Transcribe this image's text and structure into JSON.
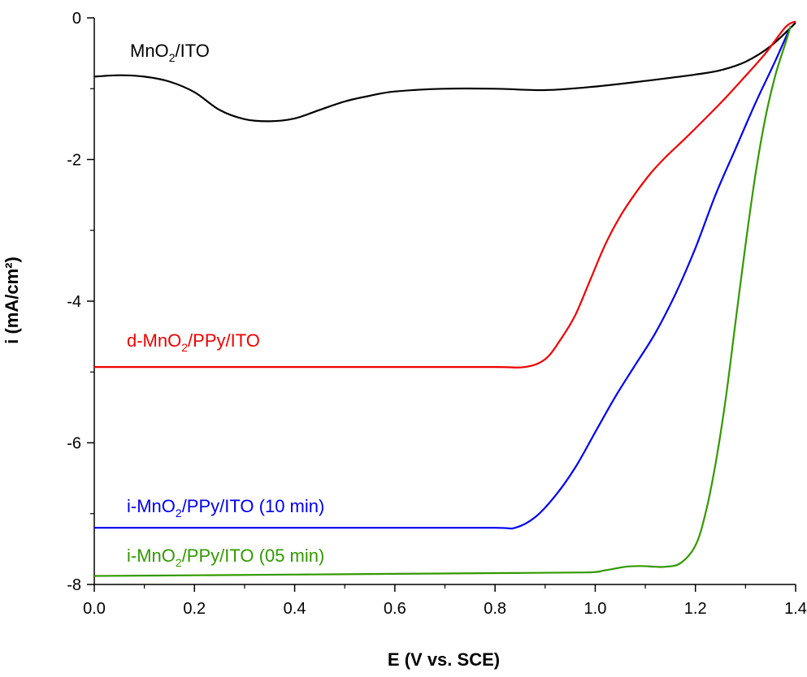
{
  "chart_data": {
    "type": "line",
    "xlabel": "E (V vs. SCE)",
    "ylabel": "i (mA/cm²)",
    "xlim": [
      0.0,
      1.4
    ],
    "ylim": [
      -8,
      0
    ],
    "xticks": [
      "0.0",
      "0.2",
      "0.4",
      "0.6",
      "0.8",
      "1.0",
      "1.2",
      "1.4"
    ],
    "yticks": [
      "0",
      "-2",
      "-4",
      "-6",
      "-8"
    ],
    "grid": false,
    "series": [
      {
        "name": "MnO2/ITO",
        "label_main": "MnO",
        "label_sub": "2",
        "label_rest": "/ITO",
        "color": "#000000",
        "points": [
          [
            0.0,
            -0.83
          ],
          [
            0.05,
            -0.81
          ],
          [
            0.1,
            -0.83
          ],
          [
            0.15,
            -0.9
          ],
          [
            0.2,
            -1.05
          ],
          [
            0.25,
            -1.3
          ],
          [
            0.3,
            -1.43
          ],
          [
            0.35,
            -1.46
          ],
          [
            0.4,
            -1.42
          ],
          [
            0.45,
            -1.3
          ],
          [
            0.5,
            -1.18
          ],
          [
            0.55,
            -1.1
          ],
          [
            0.6,
            -1.04
          ],
          [
            0.7,
            -1.0
          ],
          [
            0.8,
            -1.0
          ],
          [
            0.9,
            -1.02
          ],
          [
            1.0,
            -0.97
          ],
          [
            1.1,
            -0.89
          ],
          [
            1.2,
            -0.8
          ],
          [
            1.25,
            -0.74
          ],
          [
            1.3,
            -0.62
          ],
          [
            1.35,
            -0.4
          ],
          [
            1.4,
            -0.07
          ]
        ]
      },
      {
        "name": "d-MnO2/PPy/ITO",
        "label_main": "d-MnO",
        "label_sub": "2",
        "label_rest": "/PPy/ITO",
        "color": "#ee0000",
        "points": [
          [
            0.0,
            -4.93
          ],
          [
            0.2,
            -4.93
          ],
          [
            0.4,
            -4.93
          ],
          [
            0.6,
            -4.93
          ],
          [
            0.8,
            -4.93
          ],
          [
            0.86,
            -4.93
          ],
          [
            0.9,
            -4.82
          ],
          [
            0.93,
            -4.55
          ],
          [
            0.96,
            -4.2
          ],
          [
            0.99,
            -3.7
          ],
          [
            1.02,
            -3.2
          ],
          [
            1.05,
            -2.8
          ],
          [
            1.08,
            -2.48
          ],
          [
            1.11,
            -2.2
          ],
          [
            1.14,
            -1.97
          ],
          [
            1.18,
            -1.7
          ],
          [
            1.22,
            -1.42
          ],
          [
            1.26,
            -1.13
          ],
          [
            1.3,
            -0.82
          ],
          [
            1.34,
            -0.5
          ],
          [
            1.38,
            -0.13
          ],
          [
            1.4,
            -0.05
          ]
        ]
      },
      {
        "name": "i-MnO2/PPy/ITO (10 min)",
        "label_main": "i-MnO",
        "label_sub": "2",
        "label_rest": "/PPy/ITO (10 min)",
        "color": "#0000ee",
        "points": [
          [
            0.0,
            -7.2
          ],
          [
            0.2,
            -7.2
          ],
          [
            0.4,
            -7.2
          ],
          [
            0.6,
            -7.2
          ],
          [
            0.8,
            -7.2
          ],
          [
            0.84,
            -7.2
          ],
          [
            0.88,
            -7.05
          ],
          [
            0.92,
            -6.75
          ],
          [
            0.96,
            -6.35
          ],
          [
            1.0,
            -5.85
          ],
          [
            1.04,
            -5.35
          ],
          [
            1.08,
            -4.9
          ],
          [
            1.12,
            -4.45
          ],
          [
            1.16,
            -3.9
          ],
          [
            1.2,
            -3.25
          ],
          [
            1.24,
            -2.5
          ],
          [
            1.28,
            -1.85
          ],
          [
            1.32,
            -1.2
          ],
          [
            1.36,
            -0.6
          ],
          [
            1.39,
            -0.12
          ]
        ]
      },
      {
        "name": "i-MnO2/PPy/ITO (05 min)",
        "label_main": "i-MnO",
        "label_sub": "2",
        "label_rest": "/PPy/ITO (05 min)",
        "color": "#339900",
        "points": [
          [
            0.0,
            -7.88
          ],
          [
            0.2,
            -7.87
          ],
          [
            0.4,
            -7.86
          ],
          [
            0.6,
            -7.85
          ],
          [
            0.8,
            -7.84
          ],
          [
            0.98,
            -7.83
          ],
          [
            1.02,
            -7.8
          ],
          [
            1.06,
            -7.75
          ],
          [
            1.09,
            -7.74
          ],
          [
            1.12,
            -7.75
          ],
          [
            1.14,
            -7.75
          ],
          [
            1.17,
            -7.7
          ],
          [
            1.2,
            -7.45
          ],
          [
            1.22,
            -7.0
          ],
          [
            1.24,
            -6.3
          ],
          [
            1.26,
            -5.4
          ],
          [
            1.28,
            -4.3
          ],
          [
            1.3,
            -3.2
          ],
          [
            1.32,
            -2.2
          ],
          [
            1.34,
            -1.4
          ],
          [
            1.36,
            -0.8
          ],
          [
            1.38,
            -0.35
          ],
          [
            1.39,
            -0.12
          ]
        ]
      }
    ]
  }
}
